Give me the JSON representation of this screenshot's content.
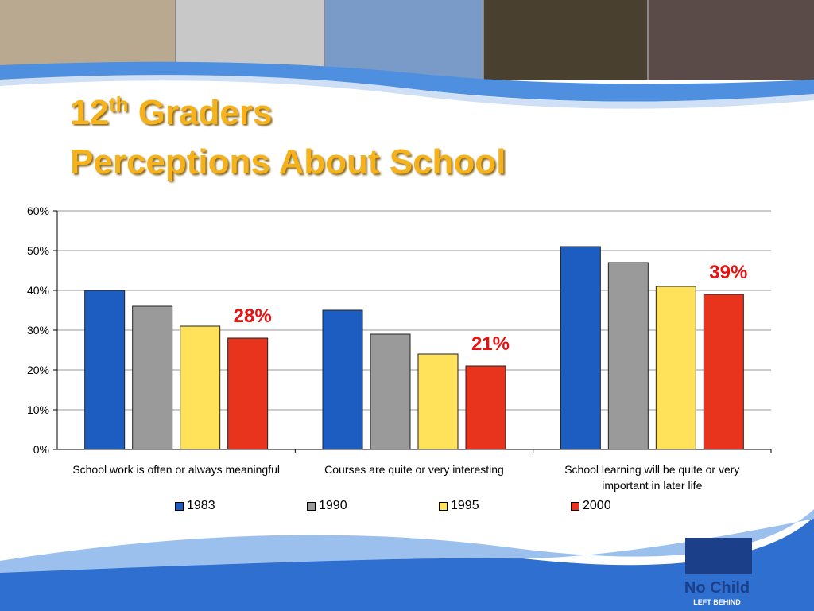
{
  "slide": {
    "title_number": "12",
    "title_sup": "th",
    "title_rest": "Graders",
    "title_line2": "Perceptions About School",
    "logo_top": "No Child",
    "logo_bottom": "LEFT BEHIND"
  },
  "chart_data": {
    "type": "bar",
    "categories": [
      "School work is often or always meaningful",
      "Courses are quite or very interesting",
      "School learning will be quite or very important in later life"
    ],
    "series": [
      {
        "name": "1983",
        "color": "#1d5cc0",
        "values": [
          40,
          35,
          51
        ]
      },
      {
        "name": "1990",
        "color": "#9a9a9a",
        "values": [
          36,
          29,
          47
        ]
      },
      {
        "name": "1995",
        "color": "#ffe25a",
        "values": [
          31,
          24,
          41
        ]
      },
      {
        "name": "2000",
        "color": "#e8341c",
        "values": [
          28,
          21,
          39
        ],
        "value_labels": [
          "28%",
          "21%",
          "39%"
        ]
      }
    ],
    "ylim": [
      0,
      60
    ],
    "yticks": [
      {
        "value": 0,
        "label": "0%"
      },
      {
        "value": 10,
        "label": "10%"
      },
      {
        "value": 20,
        "label": "20%"
      },
      {
        "value": 30,
        "label": "30%"
      },
      {
        "value": 40,
        "label": "40%"
      },
      {
        "value": 50,
        "label": "50%"
      },
      {
        "value": 60,
        "label": "60%"
      }
    ],
    "grid": true,
    "legend": "bottom"
  }
}
